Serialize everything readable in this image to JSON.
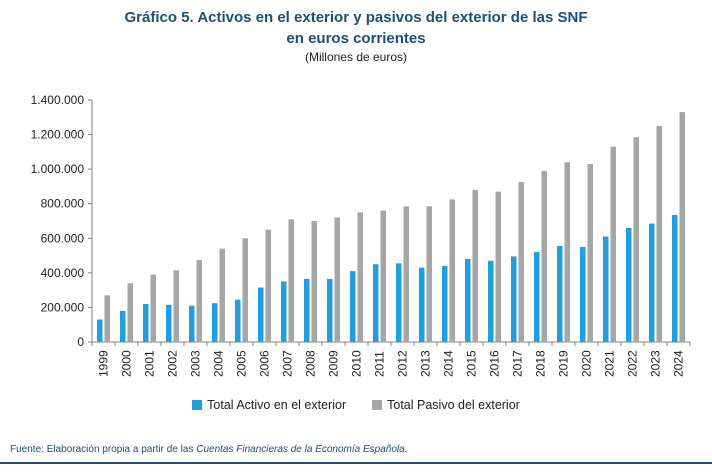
{
  "title_line1": "Gráfico 5. Activos en el exterior y pasivos del exterior de las SNF",
  "title_line2": "en euros corrientes",
  "subtitle": "(Millones de euros)",
  "source_prefix": "Fuente: Elaboración propia a partir de las ",
  "source_italic": "Cuentas Financieras de la Economía Española.",
  "chart_data": {
    "type": "bar",
    "categories": [
      "1999",
      "2000",
      "2001",
      "2002",
      "2003",
      "2004",
      "2005",
      "2006",
      "2007",
      "2008",
      "2009",
      "2010",
      "2011",
      "2012",
      "2013",
      "2014",
      "2015",
      "2016",
      "2017",
      "2018",
      "2019",
      "2020",
      "2021",
      "2022",
      "2023",
      "2024"
    ],
    "series": [
      {
        "name": "Total Activo en el exterior",
        "color": "#1ba1e2",
        "values": [
          130000,
          180000,
          220000,
          215000,
          210000,
          225000,
          245000,
          315000,
          350000,
          365000,
          365000,
          410000,
          450000,
          455000,
          430000,
          440000,
          480000,
          470000,
          495000,
          520000,
          555000,
          550000,
          610000,
          660000,
          685000,
          735000
        ]
      },
      {
        "name": "Total Pasivo del exterior",
        "color": "#a6a6a6",
        "values": [
          270000,
          340000,
          390000,
          415000,
          475000,
          540000,
          600000,
          650000,
          710000,
          700000,
          720000,
          750000,
          760000,
          785000,
          785000,
          825000,
          880000,
          870000,
          925000,
          990000,
          1040000,
          1030000,
          1130000,
          1185000,
          1250000,
          1330000
        ]
      }
    ],
    "ylim": [
      0,
      1400000
    ],
    "yticks": [
      0,
      200000,
      400000,
      600000,
      800000,
      1000000,
      1200000,
      1400000
    ],
    "ytick_labels": [
      "0",
      "200.000",
      "400.000",
      "600.000",
      "800.000",
      "1.000.000",
      "1.200.000",
      "1.400.000"
    ],
    "legend_position": "bottom",
    "grid": false
  }
}
